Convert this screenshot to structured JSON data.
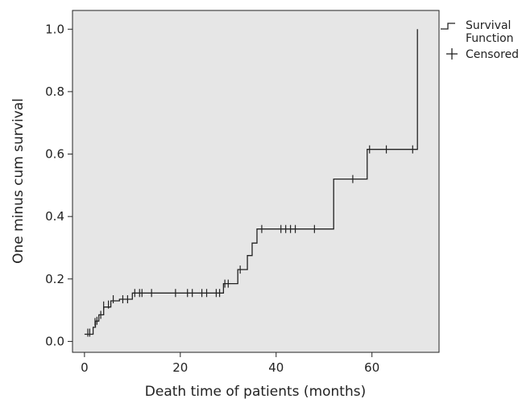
{
  "chart_data": {
    "type": "line",
    "title": "",
    "xlabel": "Death time of patients (months)",
    "ylabel": "One minus cum survival",
    "xlim": [
      -2.5,
      74
    ],
    "ylim": [
      -0.035,
      1.06
    ],
    "x_ticks": [
      0,
      20,
      40,
      60
    ],
    "x_tick_labels": [
      "0",
      "20",
      "40",
      "60"
    ],
    "y_ticks": [
      0.0,
      0.2,
      0.4,
      0.6,
      0.8,
      1.0
    ],
    "y_tick_labels": [
      "0.0",
      "0.2",
      "0.4",
      "0.6",
      "0.8",
      "1.0"
    ],
    "grid": false,
    "plot_background": "#e6e6e6",
    "line_color": "#222222",
    "legend_position": "outside-top-right",
    "legend": {
      "survival_label_line1": "Survival",
      "survival_label_line2": "Function",
      "censored_label": "Censored"
    },
    "series": [
      {
        "name": "Survival Function",
        "step_points": [
          [
            0,
            0.023
          ],
          [
            1.8,
            0.023
          ],
          [
            1.8,
            0.045
          ],
          [
            2.3,
            0.045
          ],
          [
            2.3,
            0.065
          ],
          [
            3.0,
            0.065
          ],
          [
            3.0,
            0.085
          ],
          [
            4.0,
            0.085
          ],
          [
            4.0,
            0.11
          ],
          [
            5.5,
            0.11
          ],
          [
            5.5,
            0.13
          ],
          [
            7.3,
            0.13
          ],
          [
            7.3,
            0.135
          ],
          [
            10.0,
            0.135
          ],
          [
            10.0,
            0.155
          ],
          [
            29.0,
            0.155
          ],
          [
            29.0,
            0.185
          ],
          [
            32.0,
            0.185
          ],
          [
            32.0,
            0.23
          ],
          [
            34.0,
            0.23
          ],
          [
            34.0,
            0.275
          ],
          [
            35.0,
            0.275
          ],
          [
            35.0,
            0.315
          ],
          [
            36.0,
            0.315
          ],
          [
            36.0,
            0.36
          ],
          [
            52.0,
            0.36
          ],
          [
            52.0,
            0.52
          ],
          [
            59.0,
            0.52
          ],
          [
            59.0,
            0.615
          ],
          [
            69.5,
            0.615
          ],
          [
            69.5,
            1.0
          ]
        ]
      }
    ],
    "censored": [
      [
        0.7,
        0.028
      ],
      [
        1.1,
        0.028
      ],
      [
        2.2,
        0.062
      ],
      [
        2.6,
        0.066
      ],
      [
        3.4,
        0.085
      ],
      [
        4.0,
        0.115
      ],
      [
        5.0,
        0.118
      ],
      [
        6.0,
        0.135
      ],
      [
        8.0,
        0.135
      ],
      [
        9.0,
        0.135
      ],
      [
        10.5,
        0.155
      ],
      [
        11.5,
        0.155
      ],
      [
        12.0,
        0.155
      ],
      [
        14.0,
        0.155
      ],
      [
        19.0,
        0.155
      ],
      [
        21.5,
        0.155
      ],
      [
        22.5,
        0.155
      ],
      [
        24.5,
        0.155
      ],
      [
        25.5,
        0.155
      ],
      [
        27.5,
        0.155
      ],
      [
        28.2,
        0.155
      ],
      [
        29.3,
        0.185
      ],
      [
        30.0,
        0.185
      ],
      [
        32.5,
        0.23
      ],
      [
        37.0,
        0.36
      ],
      [
        41.0,
        0.36
      ],
      [
        42.0,
        0.36
      ],
      [
        43.0,
        0.36
      ],
      [
        44.0,
        0.36
      ],
      [
        48.0,
        0.36
      ],
      [
        56.0,
        0.52
      ],
      [
        59.5,
        0.615
      ],
      [
        63.0,
        0.615
      ],
      [
        68.5,
        0.615
      ]
    ]
  }
}
